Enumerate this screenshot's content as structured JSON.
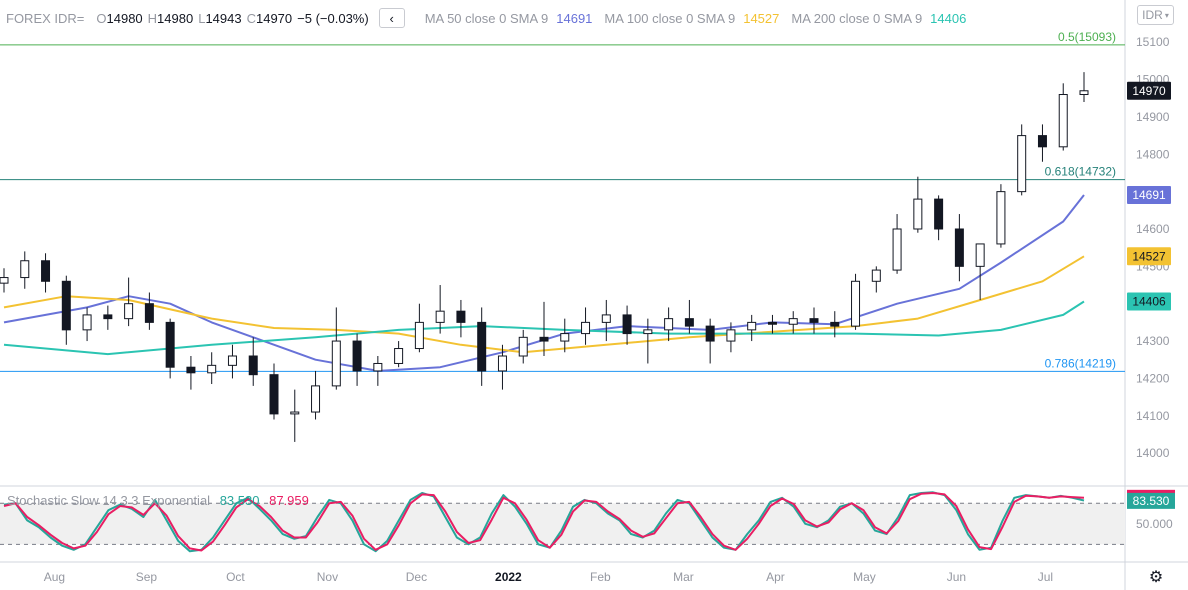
{
  "legend": {
    "symbol": "FOREX IDR=",
    "open_key": "O",
    "open": "14980",
    "high_key": "H",
    "high": "14980",
    "low_key": "L",
    "low": "14943",
    "close_key": "C",
    "close": "14970",
    "change": "−5 (−0.03%)",
    "collapse_icon": "chevron-left-icon",
    "ma": [
      {
        "label": "MA 50 close 0 SMA 9",
        "value": "14691",
        "color": "#6872d8"
      },
      {
        "label": "MA 100 close 0 SMA 9",
        "value": "14527",
        "color": "#f3c232"
      },
      {
        "label": "MA 200 close 0 SMA 9",
        "value": "14406",
        "color": "#2bc4b2"
      }
    ]
  },
  "currency_button": "IDR",
  "settings_icon": "gear-icon",
  "colors": {
    "up": "#ffffff",
    "down": "#131722",
    "wick": "#131722",
    "fib_0_5": "#4caf50",
    "fib_0_618": "#26827a",
    "fib_0_786": "#2196f3",
    "stoch_k": "#26a69a",
    "stoch_d": "#e91e63"
  },
  "chart_data": [
    {
      "type": "candlestick",
      "title": "FOREX IDR=",
      "x_tick_labels": [
        "Aug",
        "Sep",
        "Oct",
        "Nov",
        "Dec",
        "2022",
        "Feb",
        "Mar",
        "Apr",
        "May",
        "Jun",
        "Jul"
      ],
      "y_tick_labels": [
        "15100",
        "15000",
        "14900",
        "14800",
        "14700",
        "14600",
        "14500",
        "14400",
        "14300",
        "14200",
        "14100",
        "14000"
      ],
      "ylim": [
        13912,
        15213
      ],
      "price_labels": [
        {
          "name": "last",
          "value": 14970,
          "text": "14970"
        },
        {
          "name": "ma50",
          "value": 14691,
          "text": "14691"
        },
        {
          "name": "ma100",
          "value": 14527,
          "text": "14527"
        },
        {
          "name": "ma200",
          "value": 14406,
          "text": "14406"
        }
      ],
      "fib_levels": [
        {
          "label": "0.5(15093)",
          "value": 15093
        },
        {
          "label": "0.618(14732)",
          "value": 14732
        },
        {
          "label": "0.786(14219)",
          "value": 14219
        }
      ],
      "candles_weekly_approx": [
        [
          "2021-07-15",
          14455,
          14495,
          14430,
          14470
        ],
        [
          "2021-07-22",
          14470,
          14540,
          14440,
          14515
        ],
        [
          "2021-07-29",
          14515,
          14535,
          14430,
          14460
        ],
        [
          "2021-08-05",
          14460,
          14475,
          14290,
          14330
        ],
        [
          "2021-08-12",
          14330,
          14390,
          14300,
          14370
        ],
        [
          "2021-08-19",
          14370,
          14395,
          14330,
          14360
        ],
        [
          "2021-08-26",
          14360,
          14470,
          14340,
          14400
        ],
        [
          "2021-09-02",
          14400,
          14430,
          14330,
          14350
        ],
        [
          "2021-09-09",
          14350,
          14360,
          14200,
          14230
        ],
        [
          "2021-09-16",
          14230,
          14260,
          14170,
          14215
        ],
        [
          "2021-09-23",
          14215,
          14270,
          14185,
          14235
        ],
        [
          "2021-09-30",
          14235,
          14290,
          14200,
          14260
        ],
        [
          "2021-10-07",
          14260,
          14310,
          14180,
          14210
        ],
        [
          "2021-10-14",
          14210,
          14240,
          14090,
          14105
        ],
        [
          "2021-10-21",
          14105,
          14170,
          14030,
          14110
        ],
        [
          "2021-10-28",
          14110,
          14220,
          14090,
          14180
        ],
        [
          "2021-11-04",
          14180,
          14390,
          14170,
          14300
        ],
        [
          "2021-11-11",
          14300,
          14320,
          14180,
          14220
        ],
        [
          "2021-11-18",
          14220,
          14260,
          14180,
          14240
        ],
        [
          "2021-11-25",
          14240,
          14300,
          14230,
          14280
        ],
        [
          "2021-12-02",
          14280,
          14400,
          14270,
          14350
        ],
        [
          "2021-12-09",
          14350,
          14450,
          14320,
          14380
        ],
        [
          "2021-12-16",
          14380,
          14410,
          14310,
          14350
        ],
        [
          "2021-12-23",
          14350,
          14390,
          14180,
          14220
        ],
        [
          "2021-12-30",
          14220,
          14290,
          14170,
          14260
        ],
        [
          "2022-01-06",
          14260,
          14330,
          14240,
          14310
        ],
        [
          "2022-01-13",
          14310,
          14405,
          14260,
          14300
        ],
        [
          "2022-01-20",
          14300,
          14360,
          14270,
          14320
        ],
        [
          "2022-01-27",
          14320,
          14390,
          14290,
          14350
        ],
        [
          "2022-02-03",
          14350,
          14410,
          14300,
          14370
        ],
        [
          "2022-02-10",
          14370,
          14395,
          14290,
          14320
        ],
        [
          "2022-02-17",
          14320,
          14360,
          14240,
          14330
        ],
        [
          "2022-02-24",
          14330,
          14390,
          14300,
          14360
        ],
        [
          "2022-03-03",
          14360,
          14410,
          14320,
          14340
        ],
        [
          "2022-03-10",
          14340,
          14360,
          14240,
          14300
        ],
        [
          "2022-03-17",
          14300,
          14350,
          14270,
          14330
        ],
        [
          "2022-03-24",
          14330,
          14370,
          14300,
          14350
        ],
        [
          "2022-03-31",
          14350,
          14370,
          14320,
          14345
        ],
        [
          "2022-04-07",
          14345,
          14380,
          14320,
          14360
        ],
        [
          "2022-04-14",
          14360,
          14390,
          14320,
          14350
        ],
        [
          "2022-04-21",
          14350,
          14380,
          14310,
          14340
        ],
        [
          "2022-04-28",
          14340,
          14480,
          14330,
          14460
        ],
        [
          "2022-05-05",
          14460,
          14500,
          14430,
          14490
        ],
        [
          "2022-05-12",
          14490,
          14640,
          14480,
          14600
        ],
        [
          "2022-05-19",
          14600,
          14740,
          14590,
          14680
        ],
        [
          "2022-05-26",
          14680,
          14690,
          14570,
          14600
        ],
        [
          "2022-06-02",
          14600,
          14640,
          14460,
          14500
        ],
        [
          "2022-06-09",
          14500,
          14560,
          14410,
          14560
        ],
        [
          "2022-06-16",
          14560,
          14720,
          14550,
          14700
        ],
        [
          "2022-06-23",
          14700,
          14880,
          14690,
          14850
        ],
        [
          "2022-06-30",
          14850,
          14880,
          14780,
          14820
        ],
        [
          "2022-07-07",
          14820,
          14990,
          14810,
          14960
        ],
        [
          "2022-07-14",
          14960,
          15020,
          14940,
          14970
        ]
      ],
      "ma_series": [
        {
          "name": "MA 50",
          "color": "#6872d8",
          "points": [
            [
              "2021-07-15",
              14350
            ],
            [
              "2021-08-12",
              14390
            ],
            [
              "2021-08-26",
              14420
            ],
            [
              "2021-09-09",
              14400
            ],
            [
              "2021-09-23",
              14350
            ],
            [
              "2021-10-07",
              14310
            ],
            [
              "2021-10-28",
              14250
            ],
            [
              "2021-11-18",
              14220
            ],
            [
              "2021-12-09",
              14230
            ],
            [
              "2021-12-30",
              14270
            ],
            [
              "2022-01-20",
              14320
            ],
            [
              "2022-02-10",
              14340
            ],
            [
              "2022-03-10",
              14330
            ],
            [
              "2022-03-31",
              14350
            ],
            [
              "2022-04-21",
              14345
            ],
            [
              "2022-05-12",
              14400
            ],
            [
              "2022-06-02",
              14440
            ],
            [
              "2022-06-16",
              14510
            ],
            [
              "2022-07-07",
              14620
            ],
            [
              "2022-07-14",
              14691
            ]
          ]
        },
        {
          "name": "MA 100",
          "color": "#f3c232",
          "points": [
            [
              "2021-07-15",
              14390
            ],
            [
              "2021-08-05",
              14420
            ],
            [
              "2021-08-26",
              14410
            ],
            [
              "2021-09-23",
              14360
            ],
            [
              "2021-10-14",
              14335
            ],
            [
              "2021-11-04",
              14330
            ],
            [
              "2021-11-25",
              14320
            ],
            [
              "2021-12-16",
              14290
            ],
            [
              "2022-01-06",
              14270
            ],
            [
              "2022-02-03",
              14290
            ],
            [
              "2022-03-03",
              14310
            ],
            [
              "2022-03-31",
              14325
            ],
            [
              "2022-04-28",
              14340
            ],
            [
              "2022-05-19",
              14360
            ],
            [
              "2022-06-09",
              14410
            ],
            [
              "2022-06-30",
              14460
            ],
            [
              "2022-07-14",
              14527
            ]
          ]
        },
        {
          "name": "MA 200",
          "color": "#2bc4b2",
          "points": [
            [
              "2021-07-15",
              14290
            ],
            [
              "2021-08-19",
              14265
            ],
            [
              "2021-09-23",
              14290
            ],
            [
              "2021-10-28",
              14310
            ],
            [
              "2021-11-25",
              14330
            ],
            [
              "2021-12-23",
              14340
            ],
            [
              "2022-01-20",
              14330
            ],
            [
              "2022-02-24",
              14320
            ],
            [
              "2022-03-31",
              14320
            ],
            [
              "2022-04-28",
              14320
            ],
            [
              "2022-05-26",
              14315
            ],
            [
              "2022-06-16",
              14330
            ],
            [
              "2022-07-07",
              14370
            ],
            [
              "2022-07-14",
              14406
            ]
          ]
        }
      ]
    },
    {
      "type": "line",
      "title": "Stochastic Slow 14 3 3 Exponential",
      "ylim": [
        0,
        100
      ],
      "y_tick_labels": [
        "50.000"
      ],
      "reference_lines": [
        80,
        20
      ],
      "price_labels": [
        {
          "name": "d",
          "value": 87.959,
          "text": "87.959"
        },
        {
          "name": "k",
          "value": 83.53,
          "text": "83.530"
        }
      ],
      "series": [
        {
          "name": "K",
          "value": "83.530",
          "color": "#26a69a",
          "values": [
            78,
            80,
            55,
            45,
            30,
            18,
            12,
            20,
            45,
            70,
            78,
            72,
            60,
            85,
            55,
            25,
            10,
            12,
            30,
            55,
            80,
            88,
            72,
            55,
            35,
            28,
            32,
            60,
            85,
            80,
            55,
            20,
            10,
            25,
            55,
            85,
            95,
            90,
            60,
            30,
            20,
            30,
            65,
            92,
            75,
            50,
            20,
            15,
            40,
            75,
            85,
            80,
            65,
            55,
            35,
            30,
            40,
            65,
            85,
            80,
            55,
            30,
            15,
            12,
            35,
            55,
            82,
            88,
            75,
            50,
            45,
            55,
            75,
            80,
            65,
            40,
            35,
            60,
            92,
            95,
            96,
            92,
            70,
            35,
            12,
            15,
            55,
            88,
            92,
            90,
            88,
            91,
            88,
            84
          ]
        },
        {
          "name": "D",
          "value": "87.959",
          "color": "#e91e63",
          "values": [
            76,
            80,
            60,
            48,
            34,
            22,
            14,
            18,
            38,
            64,
            76,
            74,
            63,
            80,
            62,
            32,
            14,
            11,
            24,
            48,
            74,
            86,
            76,
            60,
            40,
            30,
            30,
            52,
            80,
            82,
            62,
            28,
            12,
            20,
            48,
            80,
            93,
            92,
            68,
            38,
            22,
            26,
            56,
            88,
            80,
            56,
            26,
            15,
            34,
            68,
            84,
            82,
            68,
            57,
            40,
            31,
            36,
            58,
            80,
            82,
            60,
            35,
            18,
            12,
            28,
            50,
            76,
            87,
            79,
            55,
            46,
            52,
            71,
            80,
            70,
            45,
            36,
            54,
            86,
            94,
            95,
            93,
            76,
            42,
            16,
            13,
            46,
            82,
            91,
            90,
            88,
            90,
            89,
            88
          ]
        }
      ]
    }
  ]
}
